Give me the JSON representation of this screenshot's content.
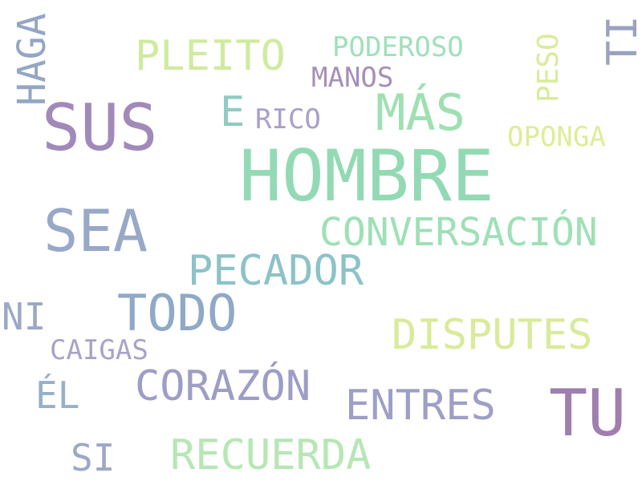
{
  "word_cloud": {
    "words": {
      "hombre": "HOMBRE",
      "sus": "SUS",
      "sea": "SEA",
      "tu": "TU",
      "mas": "MÁS",
      "todo": "TODO",
      "pecador": "PECADOR",
      "conversacion": "CONVERSACIÓN",
      "disputes": "DISPUTES",
      "corazon": "CORAZÓN",
      "entres": "ENTRES",
      "recuerda": "RECUERDA",
      "pleito": "PLEITO",
      "e": "E",
      "ni": "NI",
      "si": "SI",
      "el": "ÉL",
      "poderoso": "PODEROSO",
      "manos": "MANOS",
      "rico": "RICO",
      "oponga": "OPONGA",
      "caigas": "CAIGAS",
      "haga": "HAGA",
      "peso": "PESO",
      "ti": "TI"
    }
  }
}
